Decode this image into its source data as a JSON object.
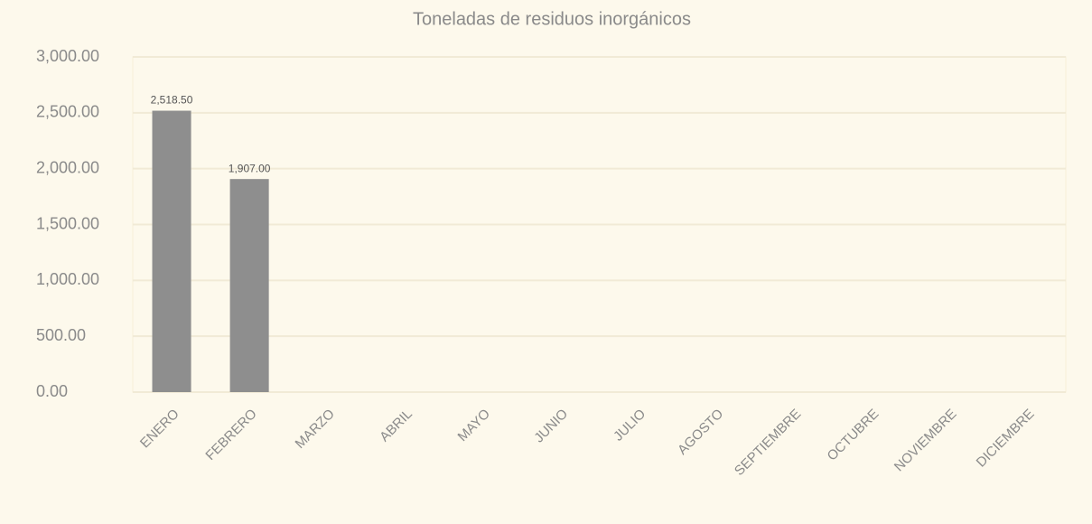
{
  "chart_data": {
    "type": "bar",
    "title": "Toneladas de residuos inorgánicos",
    "categories": [
      "ENERO",
      "FEBRERO",
      "MARZO",
      "ABRIL",
      "MAYO",
      "JUNIO",
      "JULIO",
      "AGOSTO",
      "SEPTIEMBRE",
      "OCTUBRE",
      "NOVIEMBRE",
      "DICIEMBRE"
    ],
    "values": [
      2518.5,
      1907,
      null,
      null,
      null,
      null,
      null,
      null,
      null,
      null,
      null,
      null
    ],
    "value_labels": [
      "2,518.50",
      "1,907.00",
      null,
      null,
      null,
      null,
      null,
      null,
      null,
      null,
      null,
      null
    ],
    "color": "#8e8e8e",
    "ylim": [
      0,
      3000
    ],
    "yticks": [
      {
        "value": 0,
        "label": "0.00"
      },
      {
        "value": 500,
        "label": "500.00"
      },
      {
        "value": 1000,
        "label": "1,000.00"
      },
      {
        "value": 1500,
        "label": "1,500.00"
      },
      {
        "value": 2000,
        "label": "2,000.00"
      },
      {
        "value": 2500,
        "label": "2,500.00"
      },
      {
        "value": 3000,
        "label": "3,000.00"
      }
    ],
    "grid": true
  }
}
